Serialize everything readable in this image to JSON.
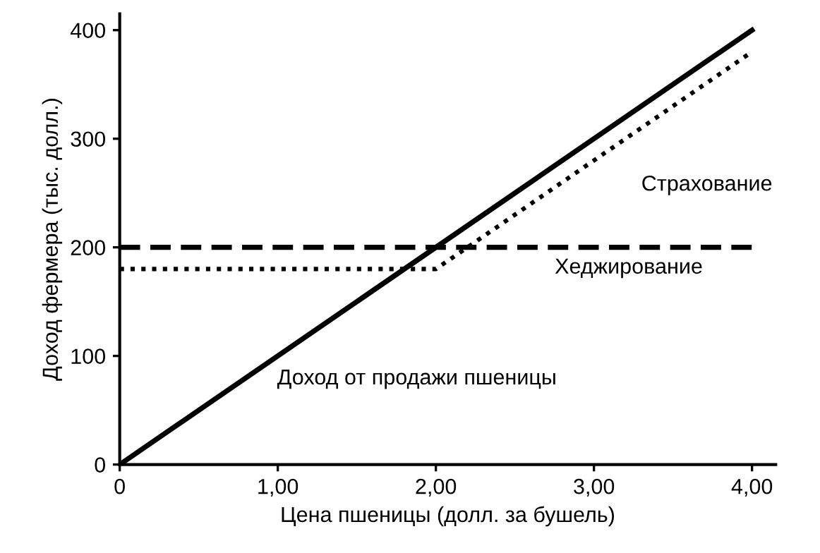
{
  "chart_data": {
    "type": "line",
    "xlabel": "Цена пшеницы (долл. за бушель)",
    "ylabel": "Доход фермера (тыс. долл.)",
    "series": [
      {
        "name": "Доход от продажи пшеницы",
        "color": "#000000",
        "line_style": "solid",
        "x": [
          0,
          4
        ],
        "values": [
          0,
          400
        ]
      },
      {
        "name": "Хеджирование",
        "color": "#000000",
        "line_style": "dashed",
        "x": [
          0,
          4
        ],
        "values": [
          200,
          200
        ]
      },
      {
        "name": "Страхование",
        "color": "#000000",
        "line_style": "dotted",
        "x": [
          0,
          2,
          4
        ],
        "values": [
          180,
          180,
          380
        ]
      }
    ],
    "xlim": [
      0,
      4.15
    ],
    "ylim": [
      0,
      415
    ],
    "xticks": [
      0,
      {
        "value": 1,
        "label": "1,00"
      },
      {
        "value": 2,
        "label": "2,00"
      },
      {
        "value": 3,
        "label": "3,00"
      },
      {
        "value": 4,
        "label": "4,00"
      }
    ],
    "yticks": [
      0,
      100,
      200,
      300,
      400
    ],
    "grid": false,
    "legend": false
  }
}
